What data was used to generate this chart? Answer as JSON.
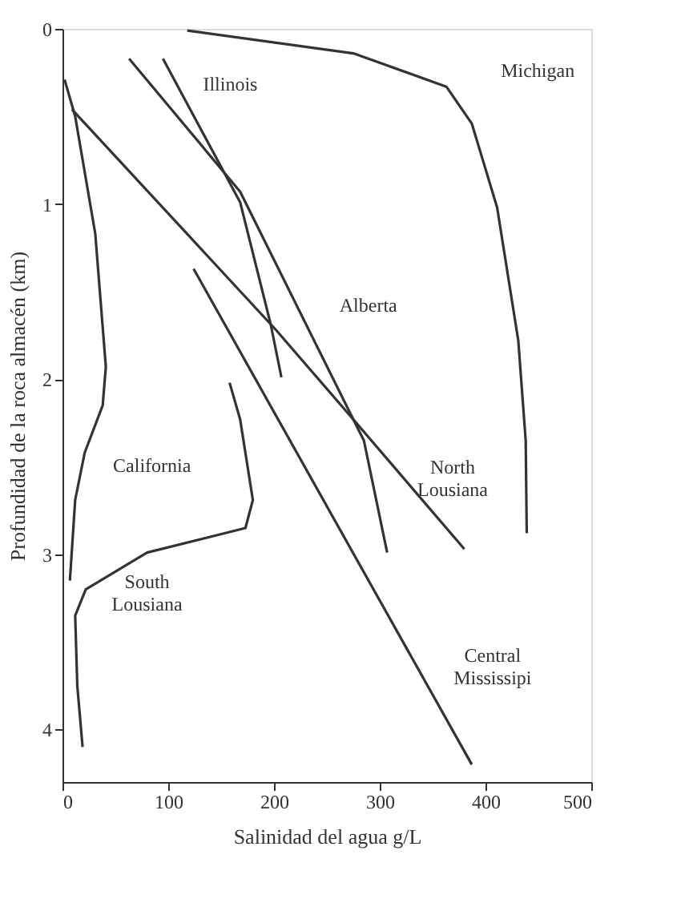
{
  "chart_data": {
    "type": "line",
    "xlabel": "Salinidad del agua g/L",
    "ylabel": "Profundidad de la roca almacén (km)",
    "xlim": [
      0,
      500
    ],
    "xticks": [
      0,
      100,
      200,
      300,
      400,
      500
    ],
    "ylim": [
      4.3,
      0
    ],
    "yticks": [
      0,
      1,
      2,
      3,
      4
    ],
    "grid": false,
    "legend": false,
    "marker": "none",
    "line_style": "solid",
    "series": [
      {
        "name": "Michigan",
        "color": "#333333",
        "x": [
          118,
          275,
          363,
          387,
          411,
          431,
          438,
          439
        ],
        "values": [
          0.01,
          0.14,
          0.33,
          0.54,
          1.02,
          1.78,
          2.35,
          2.88
        ]
      },
      {
        "name": "Illinois",
        "color": "#333333",
        "x": [
          95,
          168,
          197,
          207
        ],
        "values": [
          0.17,
          0.99,
          1.69,
          1.99
        ]
      },
      {
        "name": "Alberta",
        "color": "#333333",
        "x": [
          63,
          168,
          275,
          285,
          307
        ],
        "values": [
          0.17,
          0.93,
          2.23,
          2.35,
          2.99
        ]
      },
      {
        "name": "North Lousiana",
        "color": "#333333",
        "x": [
          9,
          202,
          275,
          380
        ],
        "values": [
          0.46,
          1.72,
          2.23,
          2.97
        ]
      },
      {
        "name": "Central Mississipi",
        "color": "#333333",
        "x": [
          124,
          387
        ],
        "values": [
          1.37,
          4.2
        ]
      },
      {
        "name": "South Lousiana",
        "color": "#333333",
        "x": [
          158,
          168,
          180,
          173,
          80,
          22,
          12,
          14,
          19
        ],
        "values": [
          2.02,
          2.23,
          2.69,
          2.85,
          2.99,
          3.2,
          3.35,
          3.75,
          4.1
        ]
      },
      {
        "name": "California",
        "color": "#333333",
        "x": [
          2,
          12,
          31,
          41,
          38,
          21,
          12,
          7
        ],
        "values": [
          0.29,
          0.5,
          1.17,
          1.93,
          2.15,
          2.42,
          2.69,
          3.15
        ]
      }
    ]
  }
}
